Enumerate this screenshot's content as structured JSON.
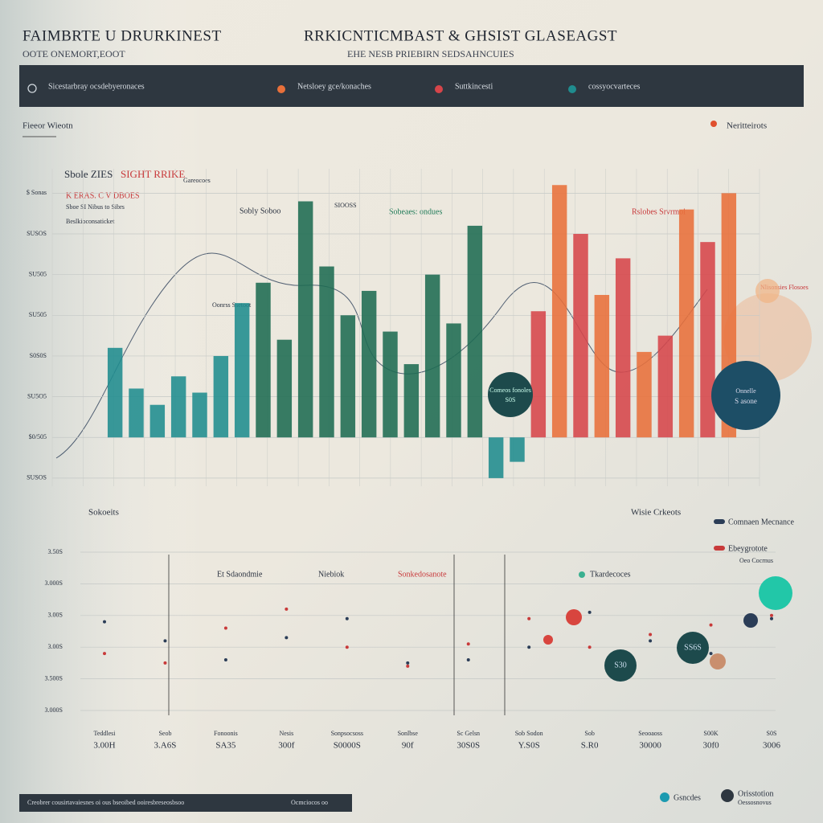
{
  "header": {
    "title_left": "FAIMBRTE U DRURKINEST",
    "subtitle_left": "OOTE ONEMORT,EOOT",
    "title_center": "RRKICNTICMBAST & GHSIST GLASEAGST",
    "subtitle_center": "EHE NESB PRIEBIRN SEDSAHNCUIES"
  },
  "chart_data": [
    {
      "type": "bar",
      "section_left": "Fieeor Wieotn",
      "section_right": "Neritteirots",
      "annotations": [
        "Sbole ZIES",
        "SIGHT RRIKE",
        "Gareocoes",
        "K ERAS. C V DBOES",
        "Sboe SI Nibus to Sibrs",
        "Beslkioconsaticket",
        "Sobly Soboo",
        "SIOOSS",
        "Sobeaes: ondues",
        "Rslobes Srvrmoi",
        "Nlisonsies Flosoes",
        "Oonrss Ssetoot",
        "Comeos fonoles",
        "S0S",
        "Onnelle",
        "S asone"
      ],
      "categories": [
        null,
        null,
        null,
        null,
        null,
        null,
        null,
        null,
        null,
        null,
        null,
        null,
        null,
        null,
        null,
        null,
        null,
        null,
        null,
        null,
        null,
        null,
        null,
        null,
        null,
        null,
        null,
        null,
        null,
        null
      ],
      "series": [
        {
          "name": "Sicestarbray ocsdebyeronaces",
          "color": "#1e6b52",
          "values": [
            null,
            null,
            null,
            null,
            null,
            null,
            null,
            3.8,
            2.4,
            5.8,
            4.2,
            3.0,
            3.6,
            2.6,
            1.8,
            4.0,
            2.8,
            5.2,
            null,
            null,
            null,
            null,
            null,
            null,
            null,
            null,
            null,
            null,
            null,
            null
          ]
        },
        {
          "name": "Netsloey gce/konaches",
          "color": "#e8703a",
          "values": [
            null,
            null,
            null,
            null,
            null,
            null,
            null,
            null,
            null,
            null,
            null,
            null,
            null,
            null,
            null,
            null,
            null,
            null,
            null,
            null,
            null,
            6.2,
            null,
            3.5,
            null,
            2.1,
            null,
            5.6,
            null,
            6.0
          ]
        },
        {
          "name": "Suttkincesti",
          "color": "#d6454a",
          "values": [
            null,
            null,
            null,
            null,
            null,
            null,
            null,
            null,
            null,
            null,
            null,
            null,
            null,
            null,
            null,
            null,
            null,
            null,
            null,
            null,
            3.1,
            null,
            5.0,
            null,
            4.4,
            null,
            2.5,
            null,
            4.8,
            null
          ]
        },
        {
          "name": "cossyocvarteces",
          "color": "#1f8c8e",
          "values": [
            2.2,
            1.2,
            0.8,
            1.5,
            1.1,
            2.0,
            3.3,
            null,
            null,
            null,
            null,
            null,
            null,
            null,
            null,
            null,
            null,
            null,
            -1.0,
            -0.6,
            null,
            null,
            null,
            null,
            null,
            null,
            null,
            null,
            null,
            null
          ]
        }
      ],
      "ylim": [
        -1.2,
        6.6
      ],
      "yticks": [
        {
          "value": -1,
          "label": "SUSOS"
        },
        {
          "value": 0,
          "label": "$0/505"
        },
        {
          "value": 1,
          "label": "SU5O5"
        },
        {
          "value": 2,
          "label": "S0S0S"
        },
        {
          "value": 3,
          "label": "SU505"
        },
        {
          "value": 4,
          "label": "SU505"
        },
        {
          "value": 5,
          "label": "SUSOS"
        },
        {
          "value": 6,
          "label": "$ Sonas"
        }
      ],
      "grid": true
    },
    {
      "type": "line",
      "section_left": "Sokoeits",
      "section_right": "Wisie Crkeots",
      "annotations": [
        "Et Sdaondmie",
        "Niebiok",
        "Sonkedosanote",
        "Tkardecoces",
        "S30",
        "SS6S",
        "Oeo Cocrnus"
      ],
      "top_labels": [
        "Teddlesi",
        "Seob",
        "Fonoonis",
        "Nesis",
        "Sonpsocsoss",
        "Sonlbse",
        "Sc Gelsn",
        "Sob Sodon",
        "Sob",
        "Seooaoss",
        "S00K",
        "S0S"
      ],
      "categories": [
        "3.00H",
        "3.A6S",
        "SA35",
        "300f",
        "S0000S",
        "90f",
        "30S0S",
        "Y.S0S",
        "S.R0",
        "30000",
        "30f0",
        "3006"
      ],
      "series": [
        {
          "name": "Comnaen Mecnance",
          "color": "#2b3d57",
          "values": [
            2.8,
            2.2,
            1.6,
            2.3,
            2.9,
            1.5,
            1.6,
            2.0,
            3.1,
            2.2,
            1.8,
            2.9
          ]
        },
        {
          "name": "Ebeygrotote",
          "color": "#c83a3a",
          "values": [
            1.8,
            1.5,
            2.6,
            3.2,
            2.0,
            1.4,
            2.1,
            2.9,
            2.0,
            2.4,
            2.7,
            3.0
          ]
        }
      ],
      "ylim": [
        0,
        5
      ],
      "yticks": [
        {
          "value": 0,
          "label": "3.000S"
        },
        {
          "value": 1,
          "label": "3.500S"
        },
        {
          "value": 2,
          "label": "3.00S"
        },
        {
          "value": 3,
          "label": "3.00S"
        },
        {
          "value": 4,
          "label": "3.000S"
        },
        {
          "value": 5,
          "label": "3.50S"
        }
      ],
      "grid": true
    }
  ],
  "footer": {
    "note": "Creobrer cousirtavaiesnes oi ous bseoibed ooiresbreseosbsoo",
    "note_right": "Ocmciocos oo",
    "legend_a": "Gsncdes",
    "legend_b": "Orisstotion",
    "legend_b_sub": "Oessosnovus"
  }
}
